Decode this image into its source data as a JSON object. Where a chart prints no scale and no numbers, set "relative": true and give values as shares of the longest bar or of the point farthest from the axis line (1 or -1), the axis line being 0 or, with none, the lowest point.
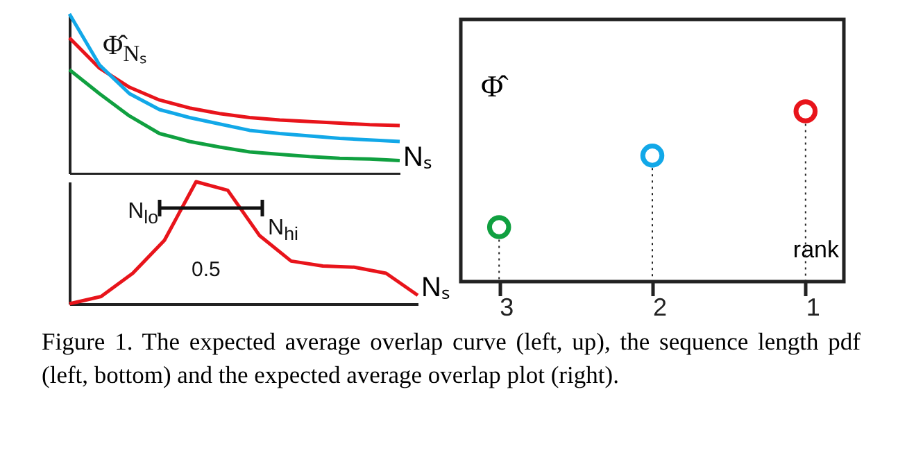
{
  "chart_data": [
    {
      "type": "line",
      "relative": true,
      "ylabel": "Φ̂$_{Nₛ}$",
      "xlabel": "Nₛ",
      "categories": [
        null,
        null,
        null,
        null,
        null,
        null,
        null,
        null,
        null,
        null,
        null,
        null
      ],
      "series": [
        {
          "color": "#e8141b",
          "values": [
            0.85,
            0.66,
            0.54,
            0.46,
            0.41,
            0.375,
            0.35,
            0.335,
            0.325,
            0.315,
            0.305,
            0.3
          ]
        },
        {
          "color": "#12a8e8",
          "values": [
            1,
            0.68,
            0.5,
            0.4,
            0.35,
            0.31,
            0.27,
            0.25,
            0.235,
            0.22,
            0.21,
            0.2
          ]
        },
        {
          "color": "#10a040",
          "values": [
            0.65,
            0.5,
            0.36,
            0.25,
            0.2,
            0.165,
            0.135,
            0.12,
            0.105,
            0.095,
            0.09,
            0.08
          ]
        }
      ],
      "annotations": [
        "Figure 1. The expected average overlap curve (left, up), the sequence length pdf (left, bottom) and the expected average overlap plot (right)."
      ]
    },
    {
      "type": "line",
      "relative": true,
      "xlabel": "Nₛ",
      "categories": [
        null,
        null,
        null,
        null,
        null,
        null,
        null,
        null,
        null,
        null,
        null,
        null
      ],
      "series": [
        {
          "color": "#e8141b",
          "values": [
            0,
            0.06,
            0.25,
            0.52,
            1,
            0.93,
            0.56,
            0.35,
            0.31,
            0.3,
            0.25,
            0.07
          ]
        }
      ],
      "annotations": [
        "0.5",
        "N$_{lo}$",
        "N$_{hi}$"
      ]
    },
    {
      "type": "lollipop",
      "relative": true,
      "ylabel": "Φ̂",
      "xlabel": "rank",
      "categories": [
        "3",
        "2",
        "1"
      ],
      "colors": [
        "#10a040",
        "#12a8e8",
        "#e8141b"
      ],
      "values": [
        0.32,
        0.74,
        1
      ],
      "marker": "circle",
      "line_style": "dotted"
    }
  ]
}
